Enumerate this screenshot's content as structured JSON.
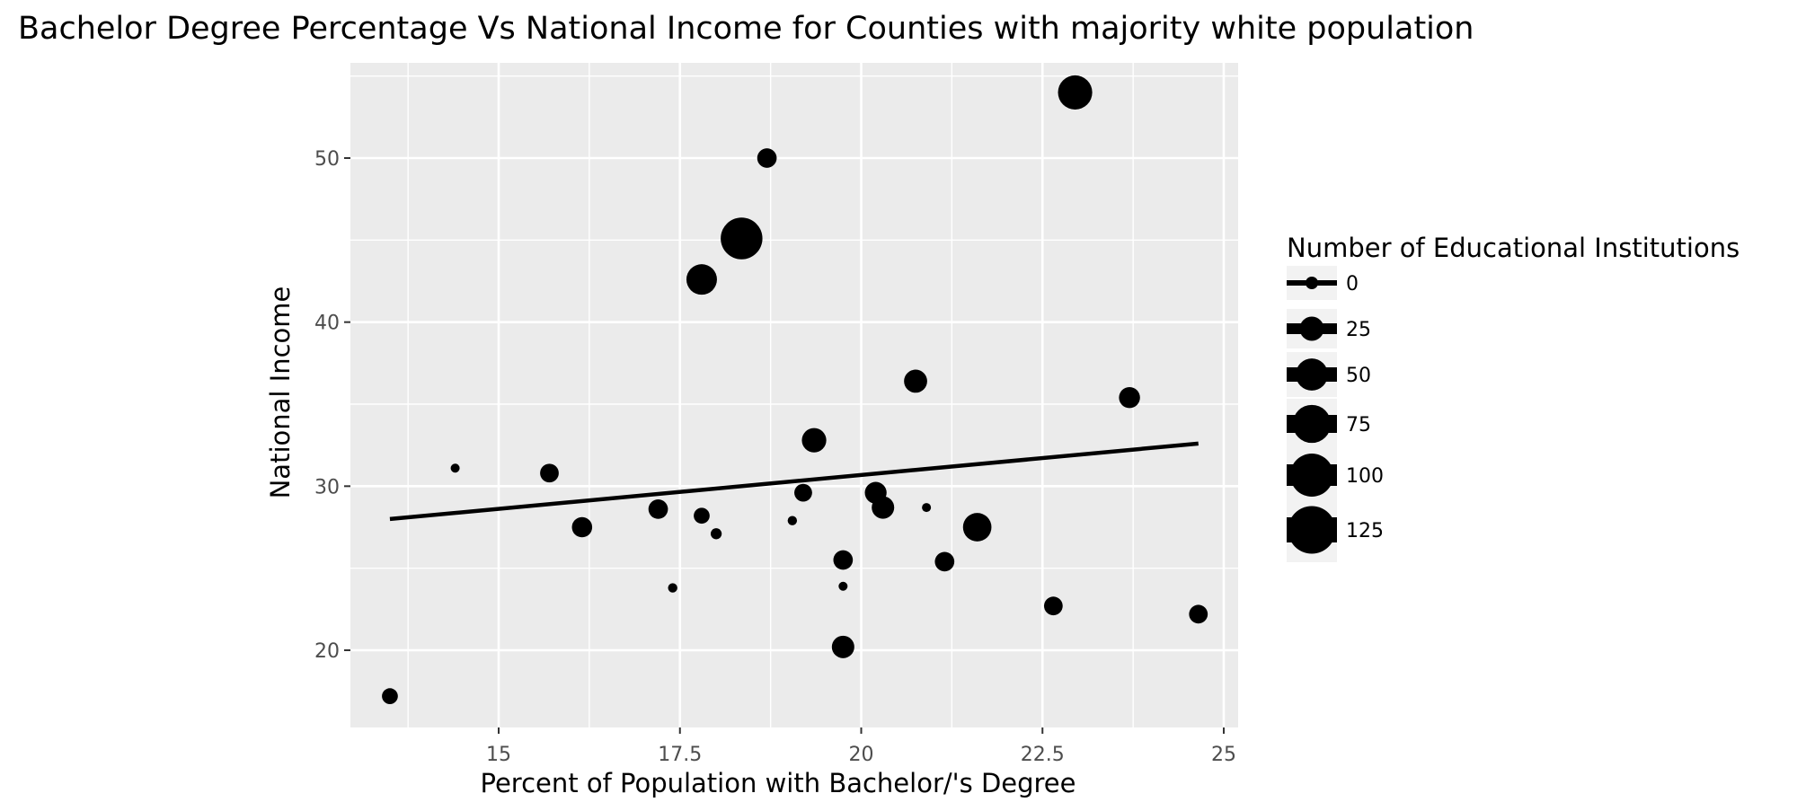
{
  "chart_data": {
    "type": "scatter",
    "title": "Bachelor Degree Percentage Vs National Income for Counties with majority white population",
    "xlabel": "Percent of Population with Bachelor/'s Degree",
    "ylabel": "National Income",
    "xlim": [
      12.8,
      25.05
    ],
    "ylim": [
      15.4,
      55.5
    ],
    "x_ticks": [
      15,
      17.5,
      20,
      22.5,
      25
    ],
    "x_tick_labels": [
      "15",
      "17.5",
      "20",
      "22.5",
      "25"
    ],
    "y_ticks": [
      20,
      30,
      40,
      50
    ],
    "y_tick_labels": [
      "20",
      "30",
      "40",
      "50"
    ],
    "grid": true,
    "background": "#ebebeb",
    "point_color": "#000000",
    "points": [
      {
        "x": 13.5,
        "y": 17.2,
        "size": 14
      },
      {
        "x": 14.4,
        "y": 31.1,
        "size": 3
      },
      {
        "x": 15.7,
        "y": 30.8,
        "size": 20
      },
      {
        "x": 16.15,
        "y": 27.5,
        "size": 24
      },
      {
        "x": 17.2,
        "y": 28.6,
        "size": 22
      },
      {
        "x": 17.4,
        "y": 23.8,
        "size": 4
      },
      {
        "x": 17.8,
        "y": 42.6,
        "size": 58
      },
      {
        "x": 17.8,
        "y": 28.2,
        "size": 14
      },
      {
        "x": 18.0,
        "y": 27.1,
        "size": 6
      },
      {
        "x": 18.35,
        "y": 45.1,
        "size": 112
      },
      {
        "x": 18.7,
        "y": 50.0,
        "size": 22
      },
      {
        "x": 19.05,
        "y": 27.9,
        "size": 4
      },
      {
        "x": 19.2,
        "y": 29.6,
        "size": 18
      },
      {
        "x": 19.35,
        "y": 32.8,
        "size": 36
      },
      {
        "x": 19.75,
        "y": 25.5,
        "size": 22
      },
      {
        "x": 19.75,
        "y": 23.9,
        "size": 3
      },
      {
        "x": 19.75,
        "y": 20.2,
        "size": 30
      },
      {
        "x": 20.2,
        "y": 29.6,
        "size": 28
      },
      {
        "x": 20.3,
        "y": 28.7,
        "size": 30
      },
      {
        "x": 20.75,
        "y": 36.4,
        "size": 32
      },
      {
        "x": 20.9,
        "y": 28.7,
        "size": 3
      },
      {
        "x": 21.15,
        "y": 25.4,
        "size": 22
      },
      {
        "x": 21.6,
        "y": 27.5,
        "size": 50
      },
      {
        "x": 22.65,
        "y": 22.7,
        "size": 20
      },
      {
        "x": 22.95,
        "y": 54.0,
        "size": 74
      },
      {
        "x": 23.7,
        "y": 35.4,
        "size": 26
      },
      {
        "x": 24.65,
        "y": 22.2,
        "size": 20
      }
    ],
    "trend_line": {
      "x": [
        13.5,
        24.65
      ],
      "y": [
        28.0,
        32.6
      ]
    },
    "legend": {
      "title": "Number of Educational Institutions",
      "placement": "right",
      "entries": [
        {
          "label": "0",
          "size": 0
        },
        {
          "label": "25",
          "size": 25
        },
        {
          "label": "50",
          "size": 50
        },
        {
          "label": "75",
          "size": 75
        },
        {
          "label": "100",
          "size": 100
        },
        {
          "label": "125",
          "size": 125
        }
      ]
    }
  }
}
